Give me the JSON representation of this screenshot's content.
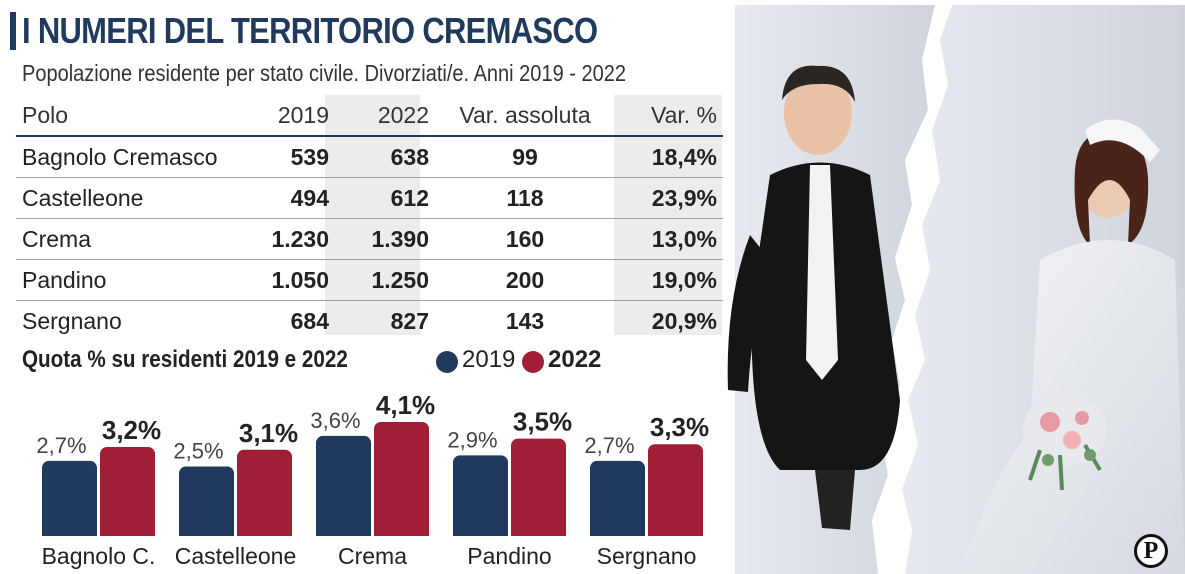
{
  "title": "I NUMERI DEL TERRITORIO CREMASCO",
  "subtitle": "Popolazione residente per stato civile. Divorziati/e. Anni 2019 - 2022",
  "table": {
    "headers": [
      "Polo",
      "2019",
      "2022",
      "Var. assoluta",
      "Var. %"
    ],
    "rows": [
      [
        "Bagnolo Cremasco",
        "539",
        "638",
        "99",
        "18,4%"
      ],
      [
        "Castelleone",
        "494",
        "612",
        "118",
        "23,9%"
      ],
      [
        "Crema",
        "1.230",
        "1.390",
        "160",
        "13,0%"
      ],
      [
        "Pandino",
        "1.050",
        "1.250",
        "200",
        "19,0%"
      ],
      [
        "Sergnano",
        "684",
        "827",
        "143",
        "20,9%"
      ]
    ]
  },
  "chart_title": "Quota % su residenti 2019 e 2022",
  "legend": {
    "y2019": {
      "label": "2019",
      "color": "#1f3a5c"
    },
    "y2022": {
      "label": "2022",
      "color": "#a01f36"
    }
  },
  "logo": "P",
  "chart_data": {
    "type": "bar",
    "categories": [
      "Bagnolo C.",
      "Castelleone",
      "Crema",
      "Pandino",
      "Sergnano"
    ],
    "series": [
      {
        "name": "2019",
        "values": [
          2.7,
          2.5,
          3.6,
          2.9,
          2.7
        ],
        "labels": [
          "2,7%",
          "2,5%",
          "3,6%",
          "2,9%",
          "2,7%"
        ],
        "color": "#1f3a5c"
      },
      {
        "name": "2022",
        "values": [
          3.2,
          3.1,
          4.1,
          3.5,
          3.3
        ],
        "labels": [
          "3,2%",
          "3,1%",
          "4,1%",
          "3,5%",
          "3,3%"
        ],
        "color": "#a01f36"
      }
    ],
    "title": "Quota % su residenti 2019 e 2022",
    "ylim": [
      0,
      4.1
    ],
    "grid": false,
    "legend_position": "top"
  }
}
